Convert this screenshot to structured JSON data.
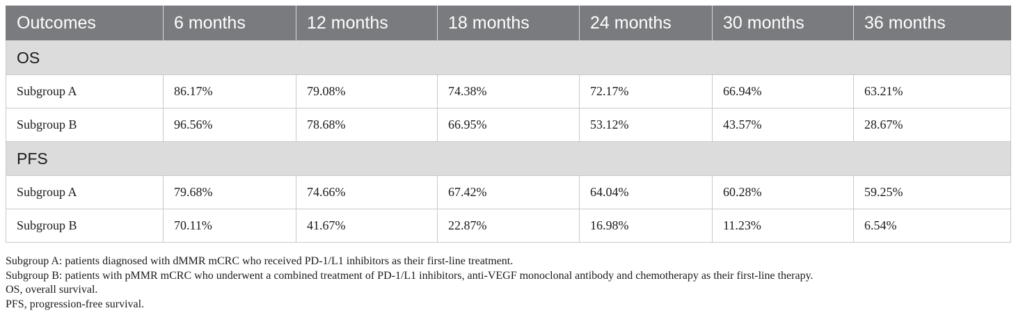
{
  "table": {
    "headers": [
      "Outcomes",
      "6 months",
      "12 months",
      "18 months",
      "24 months",
      "30 months",
      "36 months"
    ],
    "sections": [
      {
        "title": "OS",
        "rows": [
          [
            "Subgroup A",
            "86.17%",
            "79.08%",
            "74.38%",
            "72.17%",
            "66.94%",
            "63.21%"
          ],
          [
            "Subgroup B",
            "96.56%",
            "78.68%",
            "66.95%",
            "53.12%",
            "43.57%",
            "28.67%"
          ]
        ]
      },
      {
        "title": "PFS",
        "rows": [
          [
            "Subgroup A",
            "79.68%",
            "74.66%",
            "67.42%",
            "64.04%",
            "60.28%",
            "59.25%"
          ],
          [
            "Subgroup B",
            "70.11%",
            "41.67%",
            "22.87%",
            "16.98%",
            "11.23%",
            "6.54%"
          ]
        ]
      }
    ]
  },
  "footnotes": [
    "Subgroup A: patients diagnosed with dMMR mCRC who received PD-1/L1 inhibitors as their first-line treatment.",
    "Subgroup B: patients with pMMR mCRC who underwent a combined treatment of PD-1/L1 inhibitors, anti-VEGF monoclonal antibody and chemotherapy as their first-line therapy.",
    "OS, overall survival.",
    "PFS, progression-free survival."
  ]
}
